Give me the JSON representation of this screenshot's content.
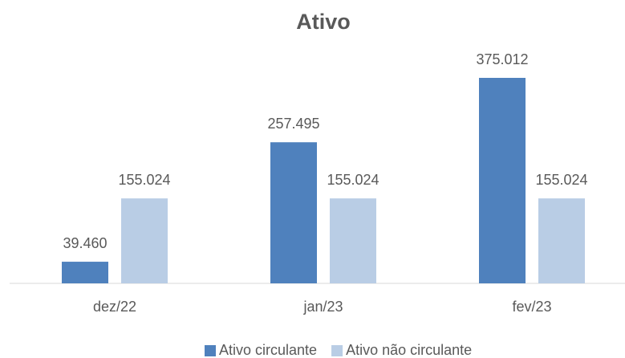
{
  "chart_data": {
    "type": "bar",
    "title": "Ativo",
    "categories": [
      "dez/22",
      "jan/23",
      "fev/23"
    ],
    "series": [
      {
        "name": "Ativo circulante",
        "color": "#4f81bd",
        "values": [
          39460,
          257495,
          375012
        ],
        "value_labels": [
          "39.460",
          "257.495",
          "375.012"
        ]
      },
      {
        "name": "Ativo não circulante",
        "color": "#b9cde5",
        "values": [
          155024,
          155024,
          155024
        ],
        "value_labels": [
          "155.024",
          "155.024",
          "155.024"
        ]
      }
    ],
    "legend": "bottom"
  }
}
